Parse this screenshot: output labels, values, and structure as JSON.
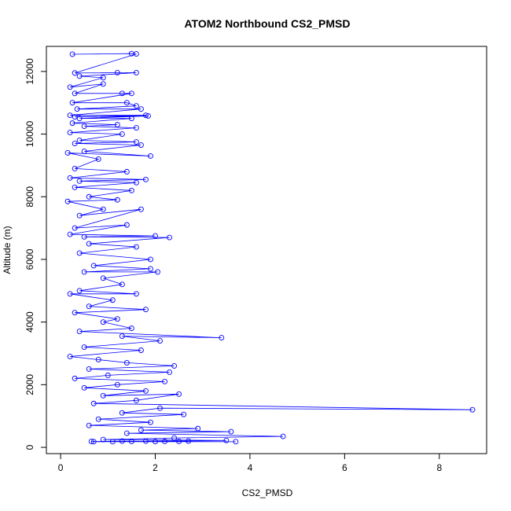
{
  "chart_data": {
    "type": "scatter",
    "title": "ATOM2 Northbound CS2_PMSD",
    "xlabel": "CS2_PMSD",
    "ylabel": "Altitude (m)",
    "xlim": [
      -0.3,
      9.0
    ],
    "ylim": [
      -200,
      12800
    ],
    "x_ticks": [
      0,
      2,
      4,
      6,
      8
    ],
    "y_ticks": [
      0,
      2000,
      4000,
      6000,
      8000,
      10000,
      12000
    ],
    "x_tick_labels": [
      "0",
      "2",
      "4",
      "6",
      "8"
    ],
    "y_tick_labels": [
      "0",
      "2000",
      "4000",
      "6000",
      "8000",
      "10000",
      "12000"
    ],
    "grid": false,
    "connect_points": true,
    "marker": "open-circle",
    "color": "#0000ff",
    "series": [
      {
        "values": [
          [
            0.25,
            12550
          ],
          [
            1.5,
            12570
          ],
          [
            1.6,
            12560
          ],
          [
            0.3,
            11950
          ],
          [
            1.2,
            11960
          ],
          [
            1.6,
            11960
          ],
          [
            0.4,
            11850
          ],
          [
            0.9,
            11800
          ],
          [
            0.2,
            11500
          ],
          [
            0.9,
            11600
          ],
          [
            0.3,
            11300
          ],
          [
            1.3,
            11300
          ],
          [
            1.5,
            11300
          ],
          [
            0.25,
            11000
          ],
          [
            1.4,
            11000
          ],
          [
            1.6,
            10900
          ],
          [
            0.35,
            10800
          ],
          [
            1.7,
            10800
          ],
          [
            0.2,
            10600
          ],
          [
            1.8,
            10600
          ],
          [
            0.3,
            10550
          ],
          [
            1.85,
            10580
          ],
          [
            0.4,
            10500
          ],
          [
            1.5,
            10500
          ],
          [
            0.25,
            10350
          ],
          [
            1.2,
            10300
          ],
          [
            0.5,
            10250
          ],
          [
            1.6,
            10200
          ],
          [
            0.2,
            10050
          ],
          [
            1.3,
            10000
          ],
          [
            0.4,
            9800
          ],
          [
            1.6,
            9750
          ],
          [
            0.3,
            9700
          ],
          [
            1.7,
            9650
          ],
          [
            0.5,
            9450
          ],
          [
            1.9,
            9300
          ],
          [
            0.15,
            9400
          ],
          [
            0.8,
            9200
          ],
          [
            0.3,
            8900
          ],
          [
            1.4,
            8800
          ],
          [
            0.2,
            8600
          ],
          [
            1.8,
            8550
          ],
          [
            0.4,
            8500
          ],
          [
            1.6,
            8450
          ],
          [
            0.3,
            8300
          ],
          [
            1.5,
            8200
          ],
          [
            0.6,
            8000
          ],
          [
            1.2,
            7900
          ],
          [
            0.15,
            7850
          ],
          [
            0.9,
            7600
          ],
          [
            0.4,
            7400
          ],
          [
            1.7,
            7600
          ],
          [
            0.3,
            7000
          ],
          [
            1.4,
            7100
          ],
          [
            0.2,
            6800
          ],
          [
            2.0,
            6750
          ],
          [
            0.5,
            6720
          ],
          [
            2.3,
            6700
          ],
          [
            0.6,
            6500
          ],
          [
            1.6,
            6400
          ],
          [
            0.4,
            6200
          ],
          [
            1.9,
            6000
          ],
          [
            0.7,
            5800
          ],
          [
            1.9,
            5700
          ],
          [
            0.5,
            5600
          ],
          [
            2.05,
            5600
          ],
          [
            0.9,
            5400
          ],
          [
            1.3,
            5200
          ],
          [
            0.4,
            5000
          ],
          [
            1.6,
            4900
          ],
          [
            0.2,
            4900
          ],
          [
            1.1,
            4700
          ],
          [
            0.6,
            4500
          ],
          [
            1.8,
            4400
          ],
          [
            0.3,
            4300
          ],
          [
            1.2,
            4100
          ],
          [
            0.9,
            4000
          ],
          [
            1.5,
            3800
          ],
          [
            0.4,
            3700
          ],
          [
            3.4,
            3500
          ],
          [
            1.3,
            3550
          ],
          [
            2.1,
            3400
          ],
          [
            0.5,
            3200
          ],
          [
            1.7,
            3100
          ],
          [
            0.2,
            2900
          ],
          [
            0.8,
            2800
          ],
          [
            1.4,
            2700
          ],
          [
            2.4,
            2600
          ],
          [
            0.6,
            2500
          ],
          [
            2.3,
            2400
          ],
          [
            1.0,
            2300
          ],
          [
            0.3,
            2200
          ],
          [
            2.2,
            2100
          ],
          [
            1.2,
            2000
          ],
          [
            0.5,
            1900
          ],
          [
            1.8,
            1800
          ],
          [
            0.9,
            1650
          ],
          [
            2.5,
            1700
          ],
          [
            1.6,
            1500
          ],
          [
            0.7,
            1400
          ],
          [
            8.7,
            1200
          ],
          [
            2.1,
            1250
          ],
          [
            1.3,
            1100
          ],
          [
            2.6,
            1050
          ],
          [
            0.8,
            900
          ],
          [
            1.9,
            800
          ],
          [
            0.6,
            700
          ],
          [
            2.9,
            600
          ],
          [
            1.7,
            550
          ],
          [
            3.6,
            500
          ],
          [
            1.4,
            450
          ],
          [
            4.7,
            350
          ],
          [
            2.4,
            300
          ],
          [
            0.9,
            250
          ],
          [
            3.5,
            220
          ],
          [
            1.8,
            200
          ],
          [
            2.7,
            200
          ],
          [
            0.7,
            180
          ],
          [
            1.5,
            190
          ],
          [
            2.2,
            190
          ],
          [
            3.7,
            180
          ],
          [
            1.1,
            180
          ],
          [
            2.0,
            185
          ],
          [
            0.65,
            190
          ],
          [
            1.3,
            200
          ],
          [
            2.5,
            190
          ]
        ]
      }
    ]
  }
}
